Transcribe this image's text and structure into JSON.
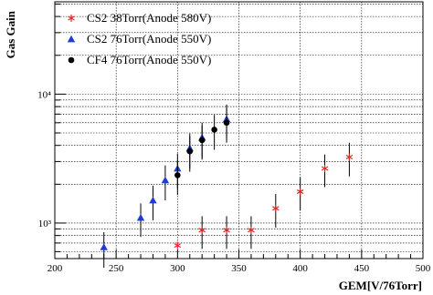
{
  "chart_data": {
    "type": "scatter",
    "title": "",
    "xlabel": "GEM[V/76Torr]",
    "ylabel": "Gas Gain",
    "xlim": [
      200,
      500
    ],
    "ylim": [
      530,
      52000
    ],
    "yscale": "log",
    "grid": true,
    "legend_position": "top-left",
    "x_ticks": [
      200,
      250,
      300,
      350,
      400,
      450,
      500
    ],
    "y_ticks": [
      {
        "value": 1000,
        "label": "10³"
      },
      {
        "value": 10000,
        "label": "10⁴"
      }
    ],
    "series": [
      {
        "name": "CS2 38Torr(Anode 580V)",
        "marker": "star",
        "color": "#e8262a",
        "points": [
          {
            "x": 300,
            "y": 670,
            "err": 0
          },
          {
            "x": 320,
            "y": 880,
            "err": 250
          },
          {
            "x": 340,
            "y": 880,
            "err": 250
          },
          {
            "x": 360,
            "y": 880,
            "err": 250
          },
          {
            "x": 380,
            "y": 1300,
            "err": 380
          },
          {
            "x": 400,
            "y": 1750,
            "err": 500
          },
          {
            "x": 420,
            "y": 2650,
            "err": 750
          },
          {
            "x": 440,
            "y": 3250,
            "err": 950
          }
        ]
      },
      {
        "name": "CS2 76Torr(Anode 550V)",
        "marker": "triangle",
        "color": "#1f3bd6",
        "points": [
          {
            "x": 240,
            "y": 650,
            "err": 200
          },
          {
            "x": 270,
            "y": 1100,
            "err": 320
          },
          {
            "x": 280,
            "y": 1500,
            "err": 450
          },
          {
            "x": 290,
            "y": 2150,
            "err": 650
          },
          {
            "x": 300,
            "y": 2650,
            "err": 800
          },
          {
            "x": 310,
            "y": 3800,
            "err": 1150
          },
          {
            "x": 320,
            "y": 4600,
            "err": 1400
          },
          {
            "x": 340,
            "y": 6400,
            "err": 1900
          }
        ]
      },
      {
        "name": "CF4 76Torr(Anode 550V)",
        "marker": "circle",
        "color": "#000000",
        "points": [
          {
            "x": 300,
            "y": 2350,
            "err": 700
          },
          {
            "x": 310,
            "y": 3600,
            "err": 1100
          },
          {
            "x": 320,
            "y": 4400,
            "err": 1300
          },
          {
            "x": 330,
            "y": 5300,
            "err": 1600
          },
          {
            "x": 340,
            "y": 6000,
            "err": 1800
          }
        ]
      }
    ]
  }
}
